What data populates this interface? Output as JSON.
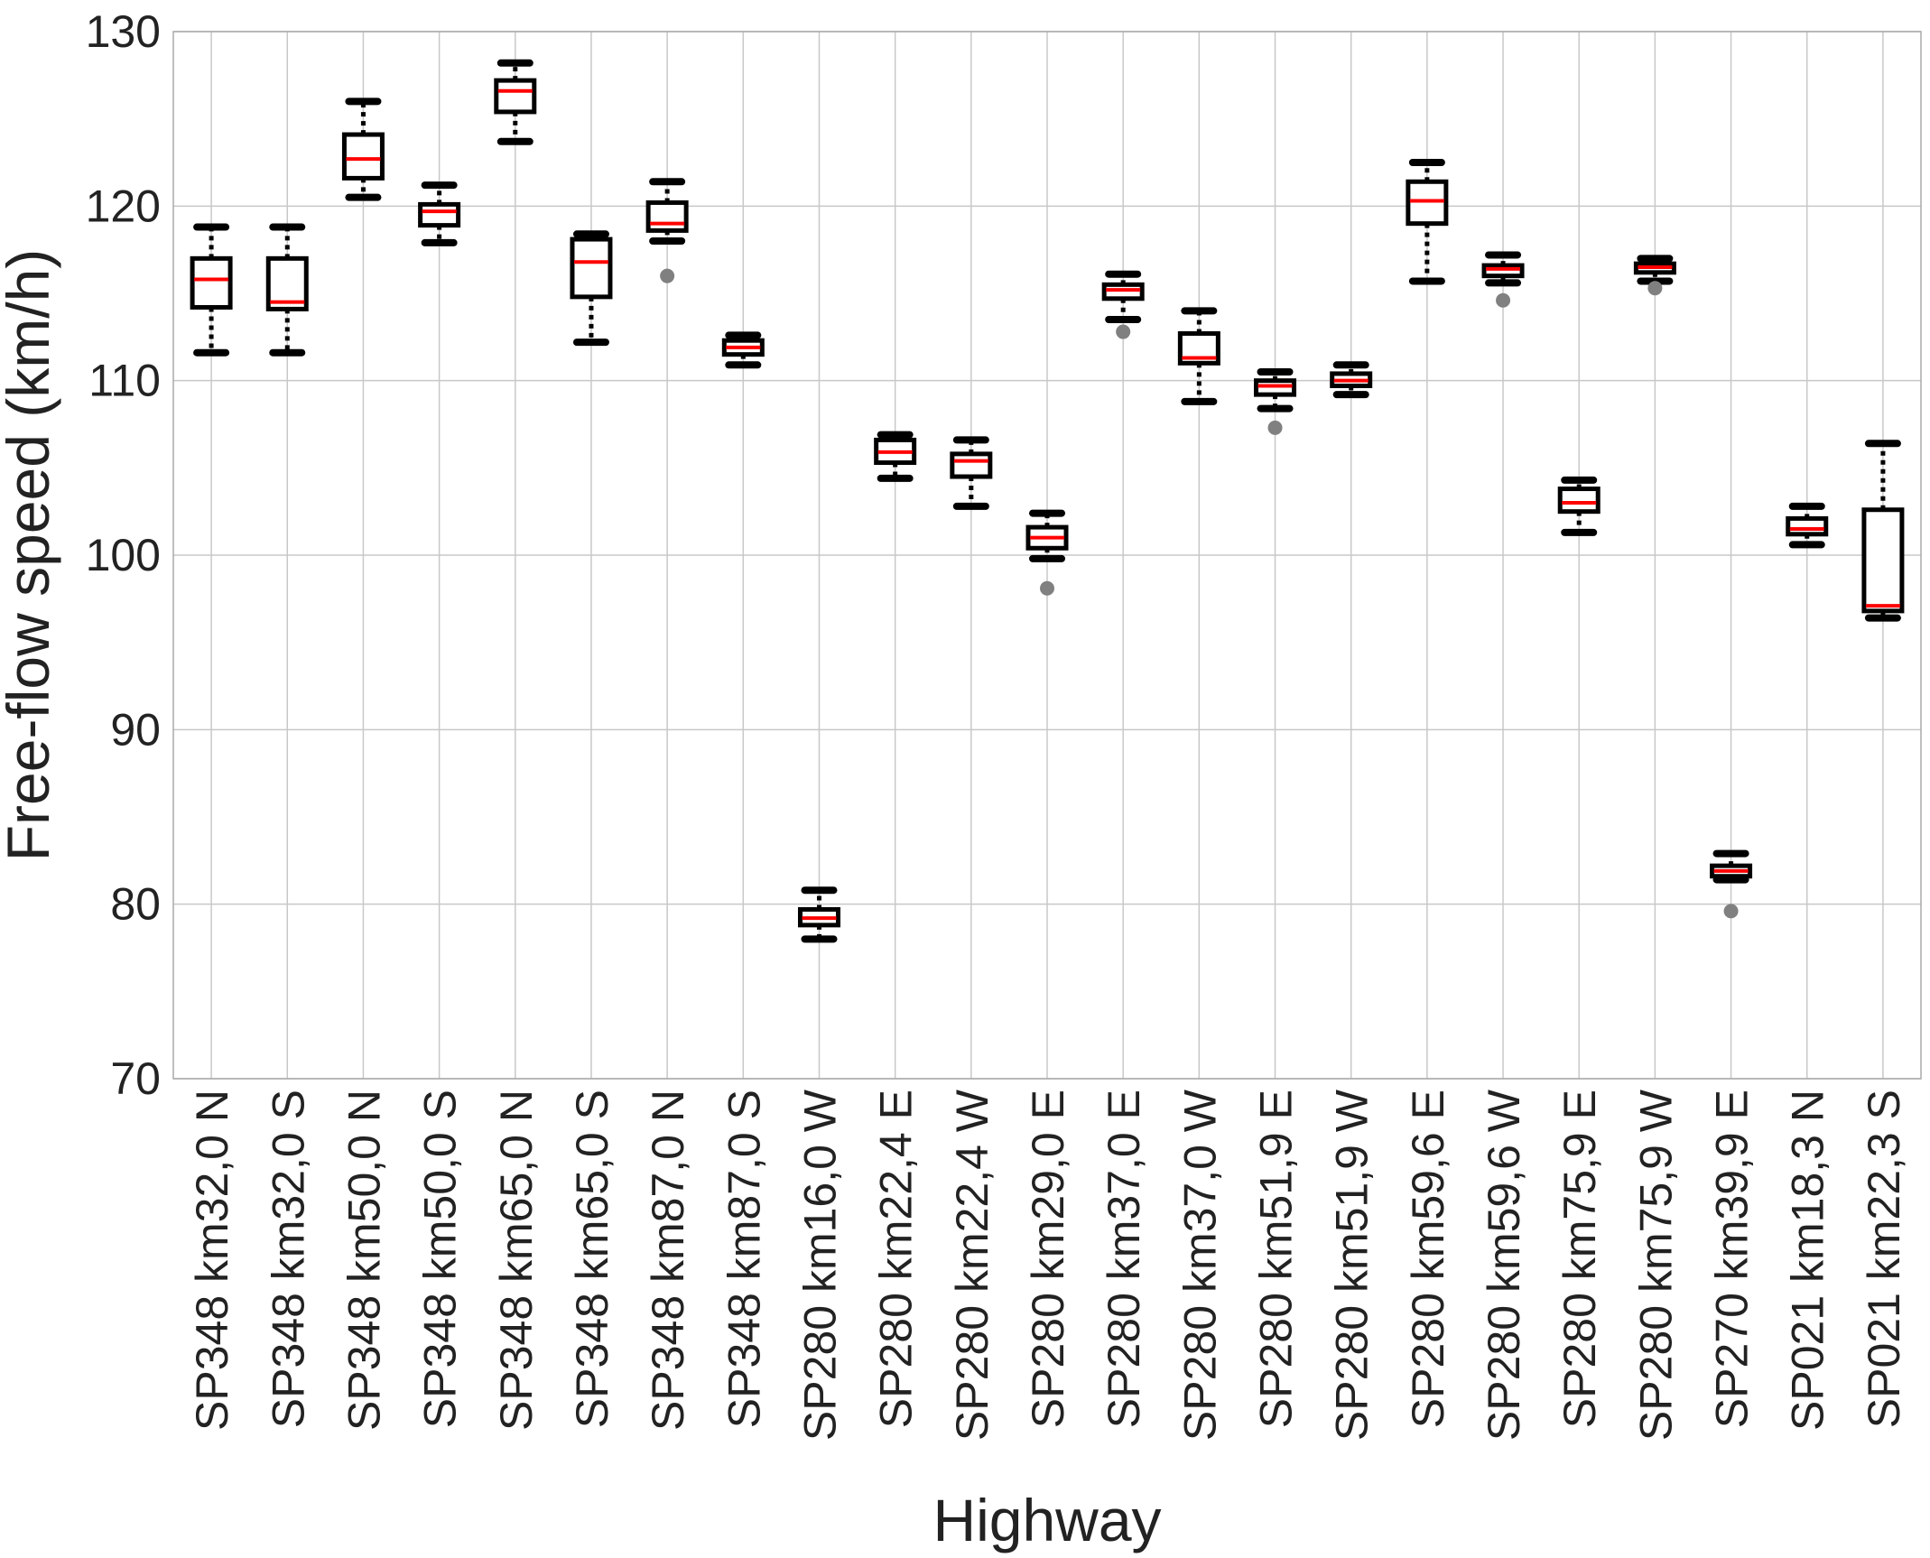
{
  "chart_data": {
    "type": "boxplot",
    "title": "",
    "xlabel": "Highway",
    "ylabel": "Free-flow speed (km/h)",
    "ylim": [
      70,
      130
    ],
    "yticks": [
      70,
      80,
      90,
      100,
      110,
      120,
      130
    ],
    "grid": true,
    "categories": [
      "SP348 km32,0 N",
      "SP348 km32,0 S",
      "SP348 km50,0 N",
      "SP348 km50,0 S",
      "SP348 km65,0 N",
      "SP348 km65,0 S",
      "SP348 km87,0 N",
      "SP348 km87,0 S",
      "SP280 km16,0 W",
      "SP280 km22,4 E",
      "SP280 km22,4 W",
      "SP280 km29,0 E",
      "SP280 km37,0 E",
      "SP280 km37,0 W",
      "SP280 km51,9 E",
      "SP280 km51,9 W",
      "SP280 km59,6 E",
      "SP280 km59,6 W",
      "SP280 km75,9 E",
      "SP280 km75,9 W",
      "SP270 km39,9 E",
      "SP021 km18,3 N",
      "SP021 km22,3 S"
    ],
    "boxes": [
      {
        "whislo": 111.6,
        "q1": 114.2,
        "med": 115.8,
        "q3": 117.0,
        "whishi": 118.8,
        "fliers": []
      },
      {
        "whislo": 111.6,
        "q1": 114.1,
        "med": 114.5,
        "q3": 117.0,
        "whishi": 118.8,
        "fliers": []
      },
      {
        "whislo": 120.5,
        "q1": 121.6,
        "med": 122.7,
        "q3": 124.1,
        "whishi": 126.0,
        "fliers": []
      },
      {
        "whislo": 117.9,
        "q1": 118.9,
        "med": 119.7,
        "q3": 120.1,
        "whishi": 121.2,
        "fliers": []
      },
      {
        "whislo": 123.7,
        "q1": 125.4,
        "med": 126.6,
        "q3": 127.2,
        "whishi": 128.2,
        "fliers": []
      },
      {
        "whislo": 112.2,
        "q1": 114.8,
        "med": 116.8,
        "q3": 118.1,
        "whishi": 118.4,
        "fliers": []
      },
      {
        "whislo": 118.0,
        "q1": 118.6,
        "med": 119.0,
        "q3": 120.2,
        "whishi": 121.4,
        "fliers": [
          116.0
        ]
      },
      {
        "whislo": 110.9,
        "q1": 111.5,
        "med": 111.9,
        "q3": 112.3,
        "whishi": 112.6,
        "fliers": []
      },
      {
        "whislo": 78.0,
        "q1": 78.8,
        "med": 79.2,
        "q3": 79.7,
        "whishi": 80.8,
        "fliers": []
      },
      {
        "whislo": 104.4,
        "q1": 105.3,
        "med": 105.9,
        "q3": 106.6,
        "whishi": 106.9,
        "fliers": []
      },
      {
        "whislo": 102.8,
        "q1": 104.5,
        "med": 105.4,
        "q3": 105.8,
        "whishi": 106.6,
        "fliers": []
      },
      {
        "whislo": 99.8,
        "q1": 100.4,
        "med": 101.0,
        "q3": 101.6,
        "whishi": 102.4,
        "fliers": [
          98.1
        ]
      },
      {
        "whislo": 113.5,
        "q1": 114.7,
        "med": 115.2,
        "q3": 115.5,
        "whishi": 116.1,
        "fliers": [
          112.8
        ]
      },
      {
        "whislo": 108.8,
        "q1": 111.0,
        "med": 111.3,
        "q3": 112.7,
        "whishi": 114.0,
        "fliers": []
      },
      {
        "whislo": 108.4,
        "q1": 109.2,
        "med": 109.7,
        "q3": 110.0,
        "whishi": 110.5,
        "fliers": [
          107.3
        ]
      },
      {
        "whislo": 109.2,
        "q1": 109.7,
        "med": 110.0,
        "q3": 110.4,
        "whishi": 110.9,
        "fliers": []
      },
      {
        "whislo": 115.7,
        "q1": 119.0,
        "med": 120.3,
        "q3": 121.4,
        "whishi": 122.5,
        "fliers": []
      },
      {
        "whislo": 115.6,
        "q1": 116.0,
        "med": 116.4,
        "q3": 116.6,
        "whishi": 117.2,
        "fliers": [
          114.6
        ]
      },
      {
        "whislo": 101.3,
        "q1": 102.5,
        "med": 103.0,
        "q3": 103.8,
        "whishi": 104.3,
        "fliers": []
      },
      {
        "whislo": 115.7,
        "q1": 116.2,
        "med": 116.5,
        "q3": 116.7,
        "whishi": 117.0,
        "fliers": [
          115.3
        ]
      },
      {
        "whislo": 81.4,
        "q1": 81.6,
        "med": 81.9,
        "q3": 82.2,
        "whishi": 82.9,
        "fliers": [
          79.6
        ]
      },
      {
        "whislo": 100.6,
        "q1": 101.2,
        "med": 101.5,
        "q3": 102.1,
        "whishi": 102.8,
        "fliers": []
      },
      {
        "whislo": 96.4,
        "q1": 96.8,
        "med": 97.1,
        "q3": 102.6,
        "whishi": 106.4,
        "fliers": []
      }
    ],
    "colors": {
      "box": "#000000",
      "median": "#ff0000",
      "flier": "#808080",
      "grid": "#c8c8c8",
      "frame": "#aaaaaa"
    }
  }
}
